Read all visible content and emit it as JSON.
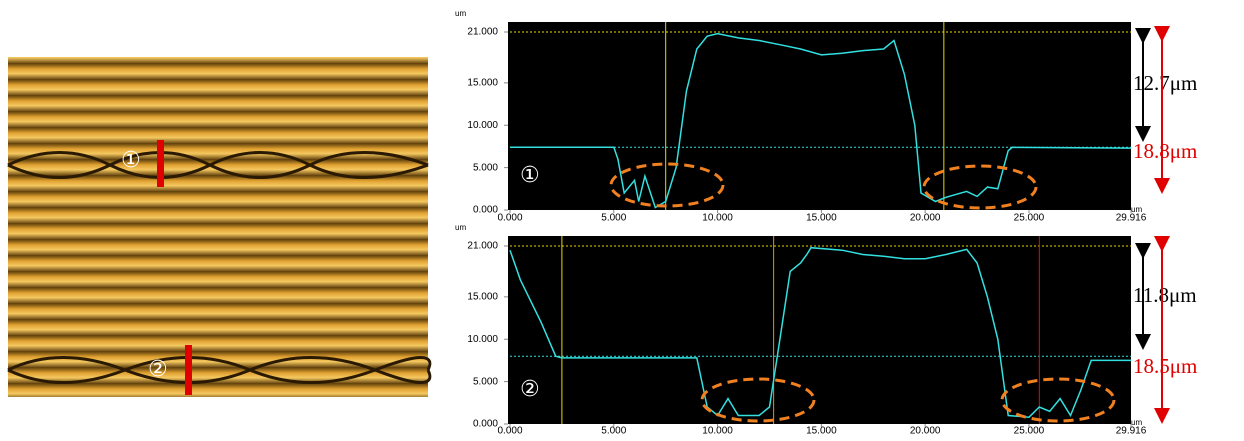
{
  "image": {
    "labels": [
      "①",
      "②"
    ]
  },
  "chart_data": [
    {
      "type": "line",
      "color": "#33e0e0",
      "x_unit": "um",
      "y_unit": "um",
      "marker_label": "①",
      "xlim": [
        0,
        29.916
      ],
      "ylim": [
        0,
        21
      ],
      "xticks": [
        {
          "value": 0,
          "label": "0.000"
        },
        {
          "value": 5,
          "label": "5.000"
        },
        {
          "value": 10,
          "label": "10.000"
        },
        {
          "value": 15,
          "label": "15.000"
        },
        {
          "value": 20,
          "label": "20.000"
        },
        {
          "value": 25,
          "label": "25.000"
        },
        {
          "value": 29.916,
          "label": "29.916"
        }
      ],
      "yticks": [
        {
          "value": 0,
          "label": "0.000"
        },
        {
          "value": 5,
          "label": "5.000"
        },
        {
          "value": 10,
          "label": "10.000"
        },
        {
          "value": 15,
          "label": "15.000"
        },
        {
          "value": 21,
          "label": "21.000"
        }
      ],
      "x": [
        0,
        5,
        5.2,
        5.5,
        6,
        6.2,
        6.5,
        7,
        7.5,
        8,
        8.5,
        9,
        9.5,
        10,
        11,
        12,
        13,
        14,
        15,
        16,
        17,
        18,
        18.5,
        19,
        19.5,
        19.8,
        20.5,
        21,
        22,
        22.5,
        23,
        23.5,
        24,
        24.2,
        29.916
      ],
      "values": [
        7.4,
        7.4,
        6,
        2,
        3.5,
        1,
        4,
        0.3,
        1,
        5,
        14,
        19,
        20.5,
        20.8,
        20.3,
        20,
        19.5,
        19,
        18.3,
        18.5,
        18.8,
        19,
        20,
        16,
        10,
        2,
        1,
        1.5,
        2.2,
        1.6,
        2.7,
        2.5,
        7,
        7.4,
        7.3
      ],
      "vlines": [
        {
          "x": 7.5,
          "color": "#e8d800"
        },
        {
          "x": 20.9,
          "color": "#e8d800"
        }
      ],
      "hlines": [
        {
          "y": 21,
          "color": "#e8d800"
        },
        {
          "y": 7.4,
          "color": "#33e0e0"
        }
      ],
      "measurements": [
        {
          "label": "12.7μm",
          "color": "#000000"
        },
        {
          "label": "18.8μm",
          "color": "#e00000"
        }
      ]
    },
    {
      "type": "line",
      "color": "#33e0e0",
      "x_unit": "um",
      "y_unit": "um",
      "marker_label": "②",
      "xlim": [
        0,
        29.916
      ],
      "ylim": [
        0,
        21
      ],
      "xticks": [
        {
          "value": 0,
          "label": "0.000"
        },
        {
          "value": 5,
          "label": "5.000"
        },
        {
          "value": 10,
          "label": "10.000"
        },
        {
          "value": 15,
          "label": "15.000"
        },
        {
          "value": 20,
          "label": "20.000"
        },
        {
          "value": 25,
          "label": "25.000"
        },
        {
          "value": 29.916,
          "label": "29.916"
        }
      ],
      "yticks": [
        {
          "value": 0,
          "label": "0.000"
        },
        {
          "value": 5,
          "label": "5.000"
        },
        {
          "value": 10,
          "label": "10.000"
        },
        {
          "value": 15,
          "label": "15.000"
        },
        {
          "value": 21,
          "label": "21.000"
        }
      ],
      "x": [
        0,
        0.5,
        1.5,
        2.2,
        2.5,
        9,
        9.5,
        10,
        10.5,
        11,
        12,
        12.5,
        13,
        13.5,
        14,
        14.3,
        14.5,
        16,
        17,
        18,
        19,
        20,
        21,
        22,
        22.5,
        23,
        23.5,
        24,
        25,
        25.5,
        26,
        26.5,
        27,
        27.5,
        28,
        29.916
      ],
      "values": [
        20.5,
        17,
        12,
        8,
        7.8,
        7.8,
        2,
        1,
        3,
        1,
        1,
        2,
        10,
        18,
        19,
        20,
        20.8,
        20.5,
        20,
        19.8,
        19.5,
        19.5,
        20,
        20.6,
        19,
        15,
        10,
        1,
        0.8,
        2,
        1.5,
        3,
        1,
        4,
        7.5,
        7.5
      ],
      "vlines": [
        {
          "x": 2.5,
          "color": "#e8d800"
        },
        {
          "x": 12.7,
          "color": "#ff8800"
        },
        {
          "x": 25.5,
          "color": "#d01010"
        }
      ],
      "hlines": [
        {
          "y": 21,
          "color": "#e8d800"
        },
        {
          "y": 8,
          "color": "#33e0e0"
        }
      ],
      "measurements": [
        {
          "label": "11.8μm",
          "color": "#000000"
        },
        {
          "label": "18.5μm",
          "color": "#e00000"
        }
      ]
    }
  ]
}
